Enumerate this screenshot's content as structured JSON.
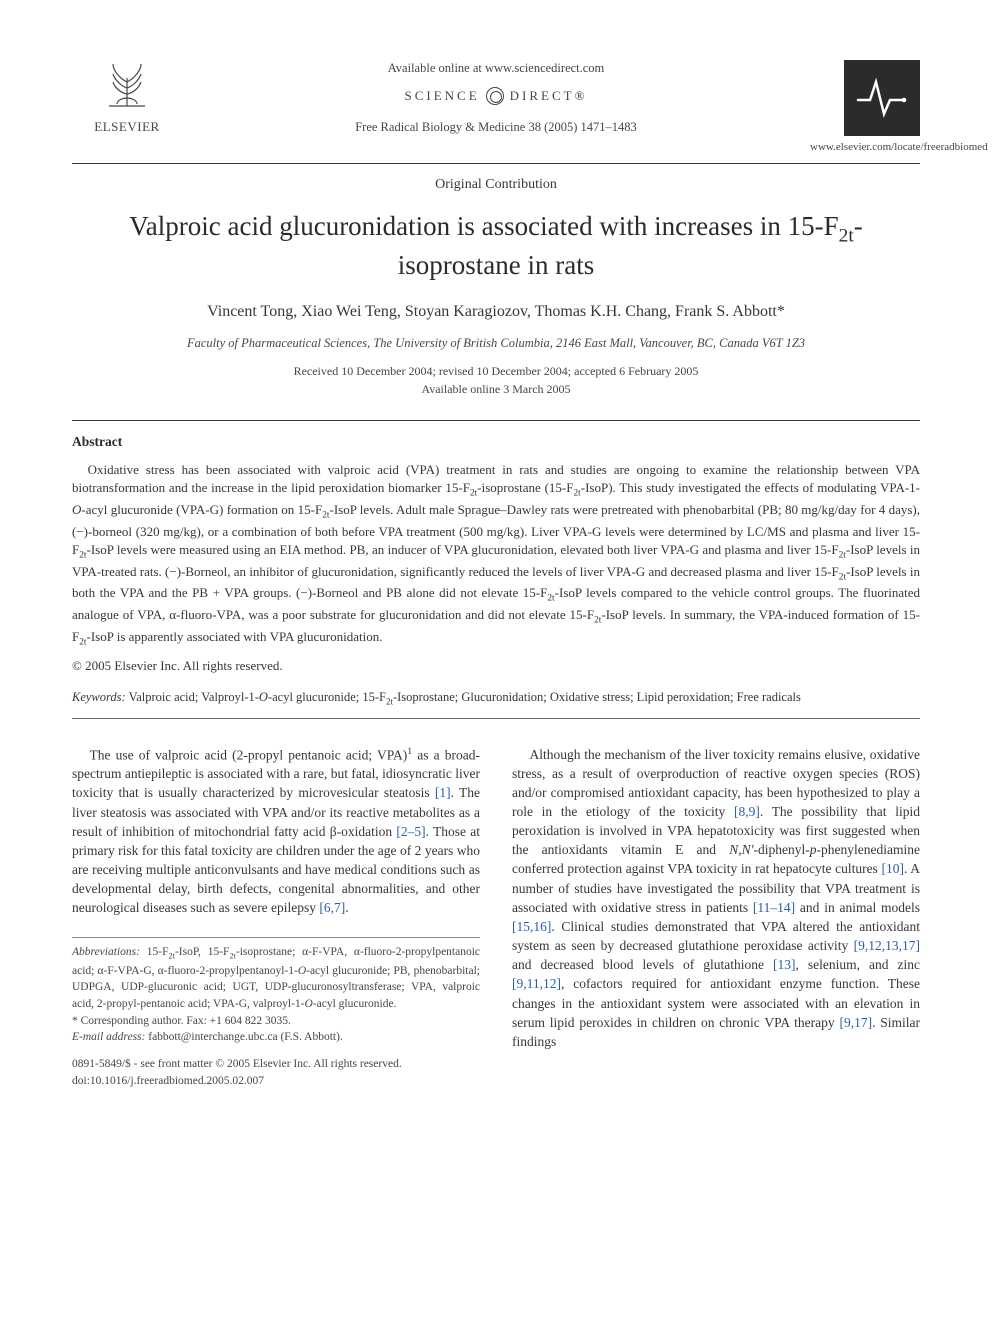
{
  "header": {
    "publisher_name": "ELSEVIER",
    "available_text": "Available online at www.sciencedirect.com",
    "scidirect_left": "SCIENCE",
    "scidirect_right": "DIRECT®",
    "journal_ref": "Free Radical Biology & Medicine 38 (2005) 1471–1483",
    "journal_url": "www.elsevier.com/locate/freeradbiomed"
  },
  "article": {
    "section_label": "Original Contribution",
    "title_html": "Valproic acid glucuronidation is associated with increases in 15-F<sub>2t</sub>-isoprostane in rats",
    "authors": "Vincent Tong, Xiao Wei Teng, Stoyan Karagiozov, Thomas K.H. Chang, Frank S. Abbott*",
    "affiliation": "Faculty of Pharmaceutical Sciences, The University of British Columbia, 2146 East Mall, Vancouver, BC, Canada V6T 1Z3",
    "dates_line1": "Received 10 December 2004; revised 10 December 2004; accepted 6 February 2005",
    "dates_line2": "Available online 3 March 2005"
  },
  "abstract": {
    "heading": "Abstract",
    "body_html": "Oxidative stress has been associated with valproic acid (VPA) treatment in rats and studies are ongoing to examine the relationship between VPA biotransformation and the increase in the lipid peroxidation biomarker 15-F<sub>2t</sub>-isoprostane (15-F<sub>2t</sub>-IsoP). This study investigated the effects of modulating VPA-1-<i>O</i>-acyl glucuronide (VPA-G) formation on 15-F<sub>2t</sub>-IsoP levels. Adult male Sprague–Dawley rats were pretreated with phenobarbital (PB; 80 mg/kg/day for 4 days), (−)-borneol (320 mg/kg), or a combination of both before VPA treatment (500 mg/kg). Liver VPA-G levels were determined by LC/MS and plasma and liver 15-F<sub>2t</sub>-IsoP levels were measured using an EIA method. PB, an inducer of VPA glucuronidation, elevated both liver VPA-G and plasma and liver 15-F<sub>2t</sub>-IsoP levels in VPA-treated rats. (−)-Borneol, an inhibitor of glucuronidation, significantly reduced the levels of liver VPA-G and decreased plasma and liver 15-F<sub>2t</sub>-IsoP levels in both the VPA and the PB + VPA groups. (−)-Borneol and PB alone did not elevate 15-F<sub>2t</sub>-IsoP levels compared to the vehicle control groups. The fluorinated analogue of VPA, α-fluoro-VPA, was a poor substrate for glucuronidation and did not elevate 15-F<sub>2t</sub>-IsoP levels. In summary, the VPA-induced formation of 15-F<sub>2t</sub>-IsoP is apparently associated with VPA glucuronidation.",
    "copyright": "© 2005 Elsevier Inc. All rights reserved."
  },
  "keywords": {
    "label": "Keywords:",
    "text_html": "Valproic acid; Valproyl-1-<i>O</i>-acyl glucuronide; 15-F<sub>2t</sub>-Isoprostane; Glucuronidation; Oxidative stress; Lipid peroxidation; Free radicals"
  },
  "body": {
    "col1_html": "The use of valproic acid (2-propyl pentanoic acid; VPA)<sup>1</sup> as a broad-spectrum antiepileptic is associated with a rare, but fatal, idiosyncratic liver toxicity that is usually characterized by microvesicular steatosis <span class=\"ref\">[1]</span>. The liver steatosis was associated with VPA and/or its reactive metabolites as a result of inhibition of mitochondrial fatty acid β-oxidation <span class=\"ref\">[2–5]</span>. Those at primary risk for this fatal toxicity are children under the age of 2 years who are receiving multiple anticonvulsants and have medical conditions such as developmental delay, birth defects, congenital abnormalities, and other neurological diseases such as severe epilepsy <span class=\"ref\">[6,7]</span>.",
    "col2_html": "Although the mechanism of the liver toxicity remains elusive, oxidative stress, as a result of overproduction of reactive oxygen species (ROS) and/or compromised antioxidant capacity, has been hypothesized to play a role in the etiology of the toxicity <span class=\"ref\">[8,9]</span>. The possibility that lipid peroxidation is involved in VPA hepatotoxicity was first suggested when the antioxidants vitamin E and <i>N,N′</i>-diphenyl-<i>p</i>-phenylenediamine conferred protection against VPA toxicity in rat hepatocyte cultures <span class=\"ref\">[10]</span>. A number of studies have investigated the possibility that VPA treatment is associated with oxidative stress in patients <span class=\"ref\">[11–14]</span> and in animal models <span class=\"ref\">[15,16]</span>. Clinical studies demonstrated that VPA altered the antioxidant system as seen by decreased glutathione peroxidase activity <span class=\"ref\">[9,12,13,17]</span> and decreased blood levels of glutathione <span class=\"ref\">[13]</span>, selenium, and zinc <span class=\"ref\">[9,11,12]</span>, cofactors required for antioxidant enzyme function. These changes in the antioxidant system were associated with an elevation in serum lipid peroxides in children on chronic VPA therapy <span class=\"ref\">[9,17]</span>. Similar findings"
  },
  "footnotes": {
    "abbrev_label": "Abbreviations:",
    "abbrev_html": "15-F<sub>2t</sub>-IsoP, 15-F<sub>2t</sub>-isoprostane; α-F-VPA, α-fluoro-2-propylpentanoic acid; α-F-VPA-G, α-fluoro-2-propylpentanoyl-1-<i>O</i>-acyl glucuronide; PB, phenobarbital; UDPGA, UDP-glucuronic acid; UGT, UDP-glucuronosyltransferase; VPA, valproic acid, 2-propyl-pentanoic acid; VPA-G, valproyl-1-<i>O</i>-acyl glucuronide.",
    "corresponding": "* Corresponding author. Fax: +1 604 822 3035.",
    "email_label": "E-mail address:",
    "email_value": "fabbott@interchange.ubc.ca (F.S. Abbott)."
  },
  "bottom": {
    "issn_line": "0891-5849/$ - see front matter © 2005 Elsevier Inc. All rights reserved.",
    "doi_line": "doi:10.1016/j.freeradbiomed.2005.02.007"
  },
  "colors": {
    "text": "#362f2d",
    "muted": "#4a4542",
    "link": "#2a5db0",
    "logo_bg": "#2b2b2b",
    "rule": "#3a3a3a"
  }
}
